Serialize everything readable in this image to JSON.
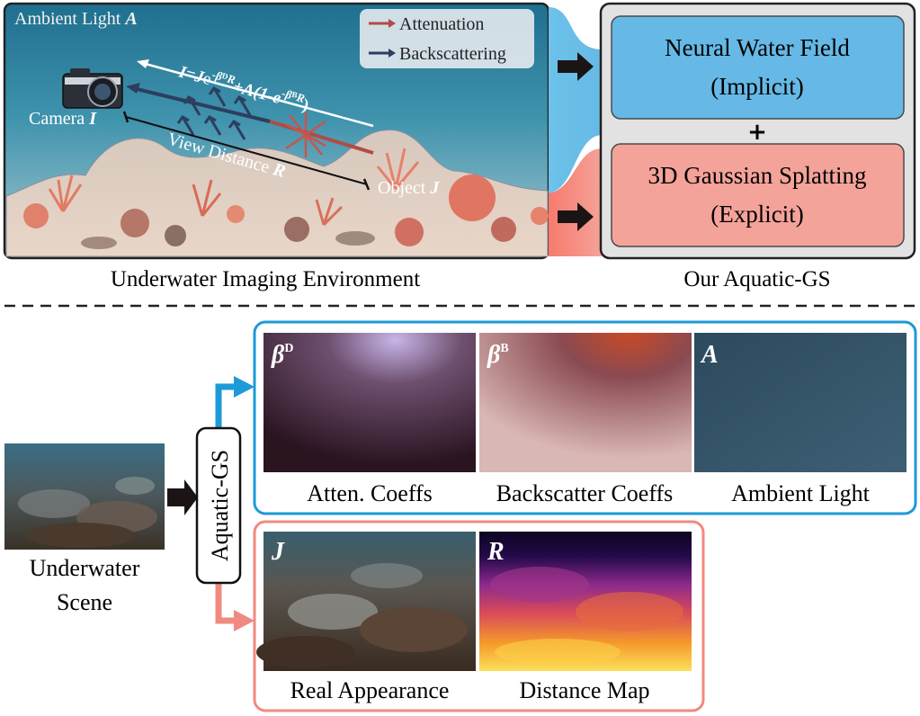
{
  "top": {
    "panel_caption": "Underwater Imaging Environment",
    "ambient_label": "Ambient Light",
    "ambient_symbol": "A",
    "camera_label": "Camera",
    "camera_symbol": "I",
    "object_label": "Object",
    "object_symbol": "J",
    "view_distance_label": "View Distance",
    "view_distance_symbol": "R",
    "equation": {
      "lhs": "I=J",
      "e1": "e",
      "exp1": "-β",
      "exp1_sup": "D",
      "exp1_r": "R",
      "plus": "+A(1-e",
      "exp2": "-β",
      "exp2_sup": "B",
      "exp2_r": "R",
      "close": ")"
    },
    "legend": {
      "attenuation": "Attenuation",
      "backscattering": "Backscattering",
      "attenuation_color": "#b24a45",
      "backscattering_color": "#2d3e5e"
    },
    "method": {
      "caption": "Our Aquatic-GS",
      "implicit_line1": "Neural Water Field",
      "implicit_line2": "(Implicit)",
      "plus": "+",
      "explicit_line1": "3D Gaussian Splatting",
      "explicit_line2": "(Explicit)",
      "implicit_color": "#66b9e6",
      "explicit_color": "#f4a39a"
    }
  },
  "bottom": {
    "input_label_line1": "Underwater",
    "input_label_line2": "Scene",
    "model_label": "Aquatic-GS",
    "water_outputs": [
      {
        "symbol": "β",
        "sup": "D",
        "caption": "Atten. Coeffs"
      },
      {
        "symbol": "β",
        "sup": "B",
        "caption": "Backscatter Coeffs"
      },
      {
        "symbol": "A",
        "sup": "",
        "caption": "Ambient Light"
      }
    ],
    "object_outputs": [
      {
        "symbol": "J",
        "caption": "Real Appearance"
      },
      {
        "symbol": "R",
        "caption": "Distance Map"
      }
    ],
    "water_color": "#1e9ad8",
    "object_color": "#f08a80"
  }
}
